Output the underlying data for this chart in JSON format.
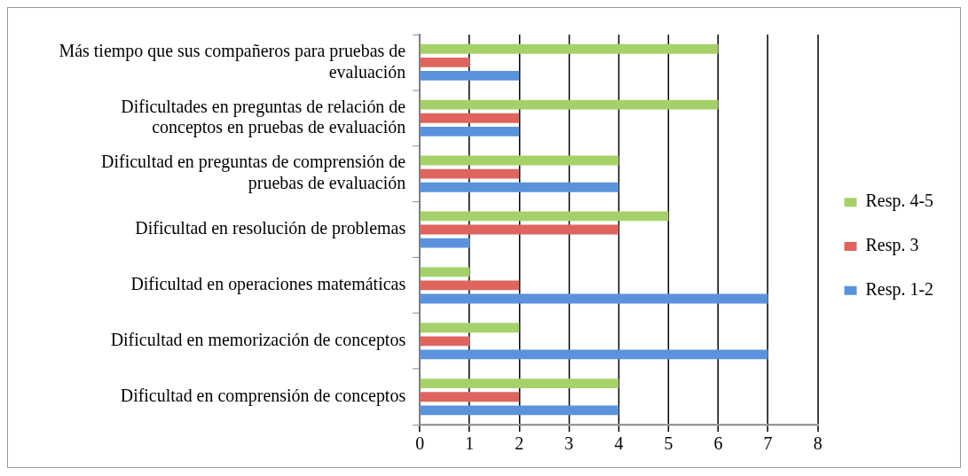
{
  "chart_data": {
    "type": "bar",
    "orientation": "horizontal",
    "categories": [
      "Más tiempo que sus compañeros para pruebas de evaluación",
      "Dificultades en preguntas de relación de conceptos en pruebas de evaluación",
      "Dificultad en preguntas de comprensión de pruebas de evaluación",
      "Dificultad en resolución de problemas",
      "Dificultad en operaciones matemáticas",
      "Dificultad en memorización de conceptos",
      "Dificultad en comprensión de conceptos"
    ],
    "series": [
      {
        "name": "Resp. 4-5",
        "color": "#a6d16a",
        "values": [
          6,
          6,
          4,
          5,
          1,
          2,
          4
        ]
      },
      {
        "name": "Resp. 3",
        "color": "#e0645e",
        "values": [
          1,
          2,
          2,
          4,
          2,
          1,
          2
        ]
      },
      {
        "name": "Resp. 1-2",
        "color": "#5a93dc",
        "values": [
          2,
          2,
          4,
          1,
          7,
          7,
          4
        ]
      }
    ],
    "xlim": [
      0,
      8
    ],
    "xticks": [
      0,
      1,
      2,
      3,
      4,
      5,
      6,
      7,
      8
    ],
    "grid": "x",
    "legend": "right"
  }
}
